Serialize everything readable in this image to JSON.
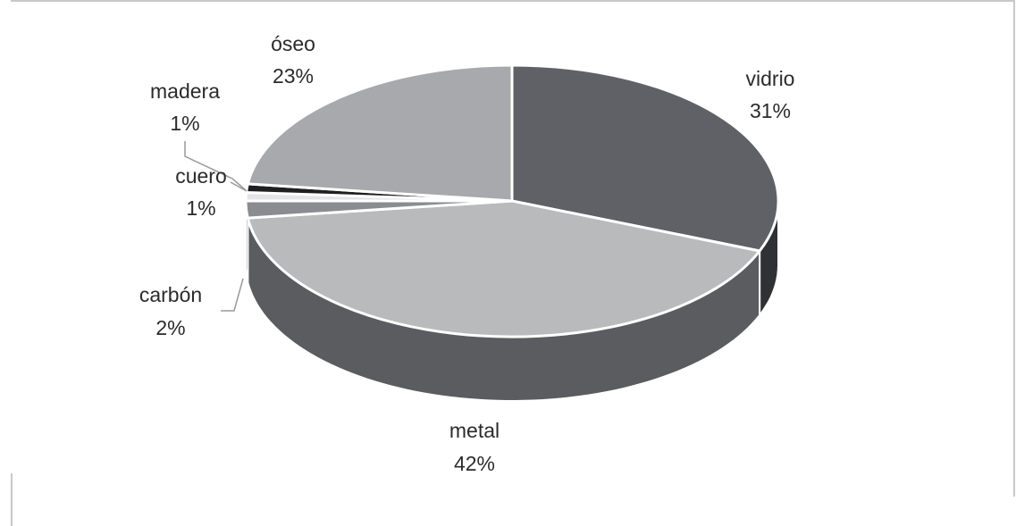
{
  "chart_data": {
    "type": "pie",
    "style": "3d-pie",
    "title": "",
    "slices": [
      {
        "label": "vidrio",
        "value": 31,
        "display": "31%",
        "color": "#5f6166",
        "side_color": "#2f3134"
      },
      {
        "label": "metal",
        "value": 42,
        "display": "42%",
        "color": "#b9babc",
        "side_color": "#5a5c60"
      },
      {
        "label": "carbón",
        "value": 2,
        "display": "2%",
        "color": "#8a8c90",
        "side_color": "#5a5c60"
      },
      {
        "label": "cuero",
        "value": 1,
        "display": "1%",
        "color": "#e4e4e6",
        "side_color": "#5a5c60"
      },
      {
        "label": "madera",
        "value": 1,
        "display": "1%",
        "color": "#1f1f22",
        "side_color": "#5a5c60"
      },
      {
        "label": "óseo",
        "value": 23,
        "display": "23%",
        "color": "#a8a9ac",
        "side_color": "#5a5c60"
      }
    ],
    "legend": "none",
    "labels": "outside with leader lines for small slices"
  }
}
